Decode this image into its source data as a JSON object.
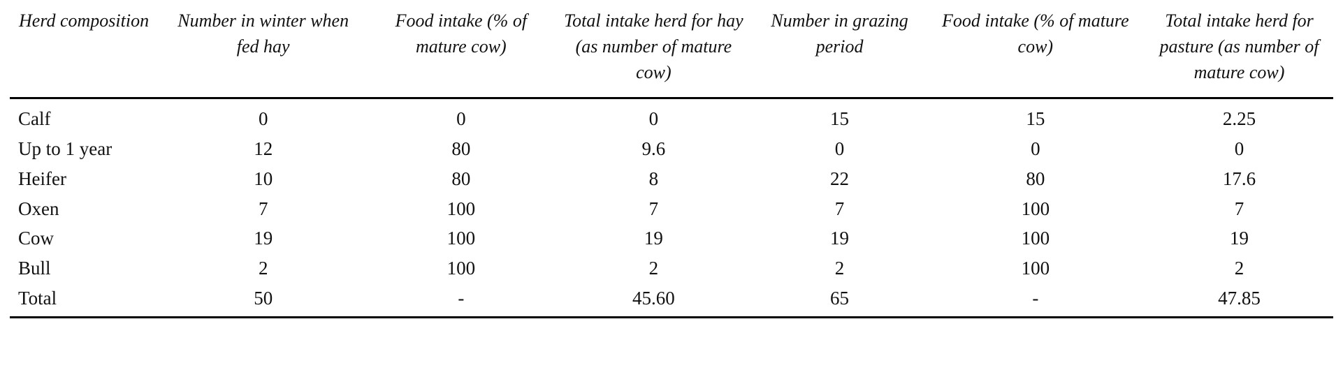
{
  "page": {
    "background_color": "#ffffff",
    "text_color": "#111111",
    "rule_color": "#000000"
  },
  "table": {
    "headers": [
      "Herd composition",
      "Number in winter when fed hay",
      "Food intake (% of mature cow)",
      "Total intake herd for hay (as number of mature cow)",
      "Number in grazing period",
      "Food intake (% of mature cow)",
      "Total intake herd for pasture (as number of mature cow)"
    ],
    "rows": [
      [
        "Calf",
        "0",
        "0",
        "0",
        "15",
        "15",
        "2.25"
      ],
      [
        "Up to 1 year",
        "12",
        "80",
        "9.6",
        "0",
        "0",
        "0"
      ],
      [
        "Heifer",
        "10",
        "80",
        "8",
        "22",
        "80",
        "17.6"
      ],
      [
        "Oxen",
        "7",
        "100",
        "7",
        "7",
        "100",
        "7"
      ],
      [
        "Cow",
        "19",
        "100",
        "19",
        "19",
        "100",
        "19"
      ],
      [
        "Bull",
        "2",
        "100",
        "2",
        "2",
        "100",
        "2"
      ],
      [
        "Total",
        "50",
        "-",
        "45.60",
        "65",
        "-",
        "47.85"
      ]
    ],
    "column_widths_percent": [
      11.2,
      15.9,
      14.0,
      15.1,
      13.0,
      16.6,
      14.2
    ]
  }
}
